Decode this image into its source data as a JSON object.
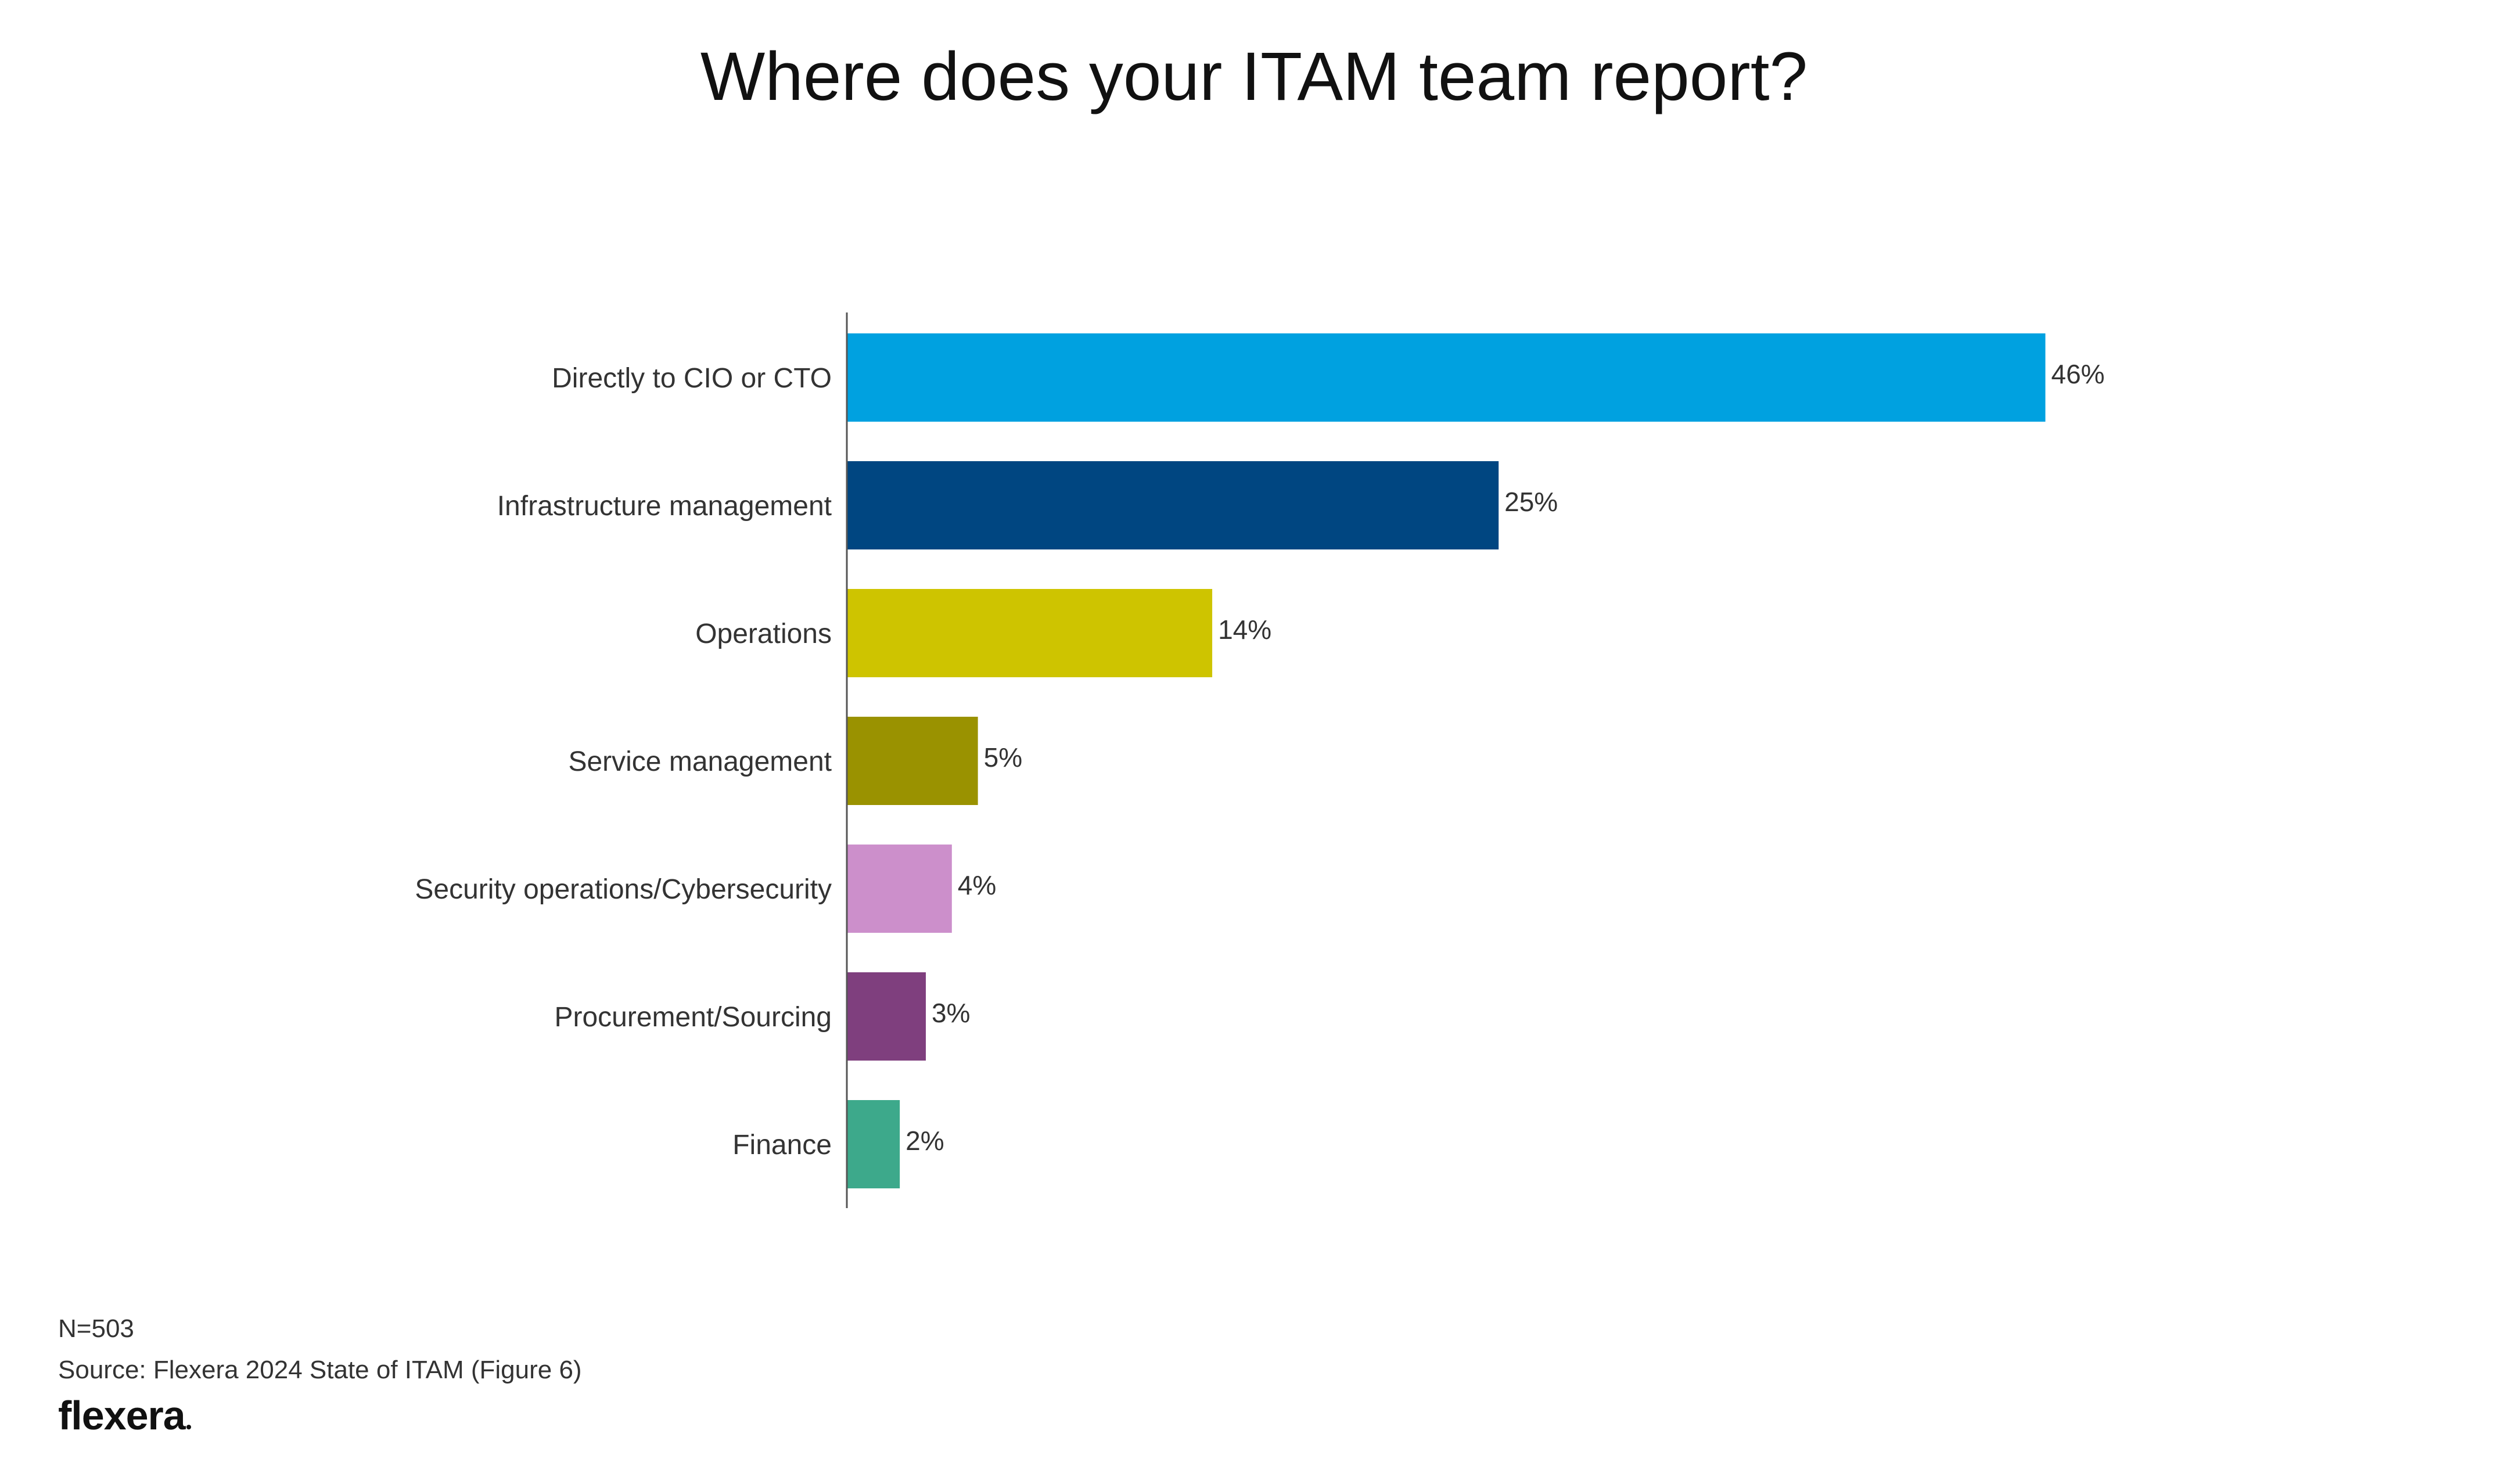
{
  "chart_data": {
    "type": "bar",
    "orientation": "horizontal",
    "title": "Where does your ITAM team report?",
    "xlabel": "",
    "ylabel": "",
    "xlim": [
      0,
      46
    ],
    "grid": false,
    "legend": "none",
    "categories": [
      "Directly to CIO or CTO",
      "Infrastructure management",
      "Operations",
      "Service management",
      "Security operations/Cybersecurity",
      "Procurement/Sourcing",
      "Finance"
    ],
    "values": [
      46,
      25,
      14,
      5,
      4,
      3,
      2
    ],
    "value_labels": [
      "46%",
      "25%",
      "14%",
      "5%",
      "4%",
      "3%",
      "2%"
    ],
    "colors": [
      "#00A1E0",
      "#004681",
      "#CEC400",
      "#9A9200",
      "#CC8FCB",
      "#7F3F7E",
      "#3DA98B"
    ]
  },
  "notes": {
    "sample": "N=503",
    "source": "Source: Flexera 2024 State of ITAM (Figure 6)"
  },
  "brand": {
    "name": "flexera"
  },
  "colors": {
    "axis": "#555555",
    "text": "#333333"
  }
}
